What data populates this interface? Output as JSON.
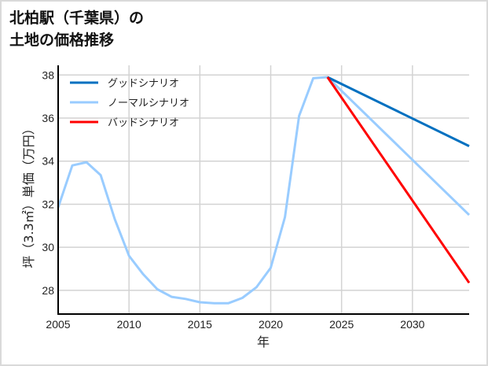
{
  "title": {
    "line1": "北柏駅（千葉県）の",
    "line2": "土地の価格推移"
  },
  "colors": {
    "good": "#0070C0",
    "normal": "#99CCFF",
    "bad": "#FF0000",
    "grid": "#d3d3d3",
    "axis": "#000000"
  },
  "chart_data": {
    "type": "line",
    "title": "北柏駅（千葉県）の土地の価格推移",
    "xlabel": "年",
    "ylabel": "坪（3.3㎡）単価（万円）",
    "xlim": [
      2005,
      2034
    ],
    "ylim": [
      26.9,
      38.45
    ],
    "xticks": [
      2005,
      2010,
      2015,
      2020,
      2025,
      2030
    ],
    "yticks": [
      28,
      30,
      32,
      34,
      36,
      38
    ],
    "grid": true,
    "legend_position": "upper left",
    "legend": [
      "グッドシナリオ",
      "ノーマルシナリオ",
      "バッドシナリオ"
    ],
    "series": [
      {
        "name": "ノーマルシナリオ",
        "color": "#99CCFF",
        "x": [
          2005,
          2006,
          2007,
          2008,
          2009,
          2010,
          2011,
          2012,
          2013,
          2014,
          2015,
          2016,
          2017,
          2018,
          2019,
          2020,
          2021,
          2022,
          2023,
          2024,
          2034
        ],
        "y": [
          31.85,
          33.8,
          33.95,
          33.35,
          31.3,
          29.6,
          28.75,
          28.05,
          27.7,
          27.6,
          27.45,
          27.4,
          27.4,
          27.65,
          28.15,
          29.05,
          31.4,
          36.1,
          37.85,
          37.9,
          31.5
        ]
      },
      {
        "name": "グッドシナリオ",
        "color": "#0070C0",
        "x": [
          2024,
          2034
        ],
        "y": [
          37.9,
          34.7
        ]
      },
      {
        "name": "バッドシナリオ",
        "color": "#FF0000",
        "x": [
          2024,
          2034
        ],
        "y": [
          37.9,
          28.35
        ]
      }
    ]
  }
}
